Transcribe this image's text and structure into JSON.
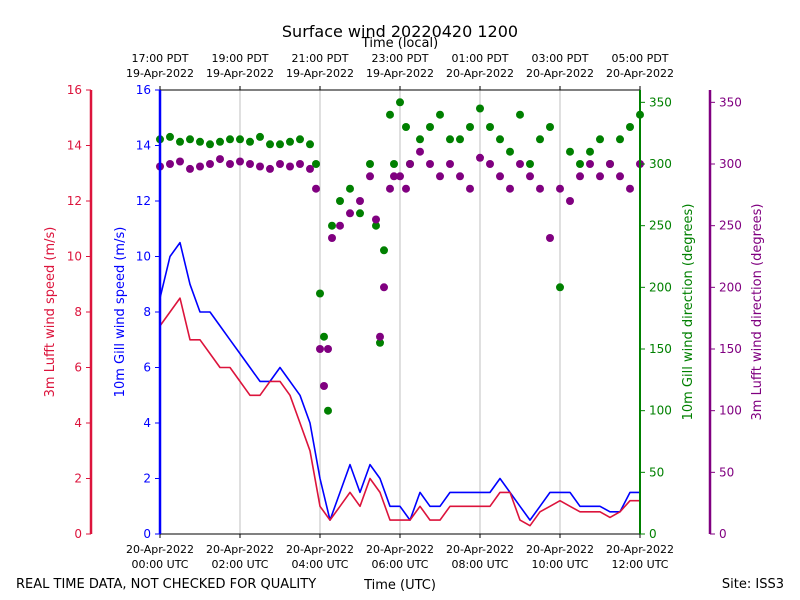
{
  "chart_data": {
    "type": "line",
    "title": "Surface wind 20220420 1200",
    "top_axis_label": "Time (local)",
    "bottom_axis_label": "Time (UTC)",
    "x_range_hours_utc": [
      0,
      12
    ],
    "grid": "vertical",
    "x_ticks_utc": [
      {
        "line1": "20-Apr-2022",
        "line2": "00:00 UTC",
        "hour": 0
      },
      {
        "line1": "20-Apr-2022",
        "line2": "02:00 UTC",
        "hour": 2
      },
      {
        "line1": "20-Apr-2022",
        "line2": "04:00 UTC",
        "hour": 4
      },
      {
        "line1": "20-Apr-2022",
        "line2": "06:00 UTC",
        "hour": 6
      },
      {
        "line1": "20-Apr-2022",
        "line2": "08:00 UTC",
        "hour": 8
      },
      {
        "line1": "20-Apr-2022",
        "line2": "10:00 UTC",
        "hour": 10
      },
      {
        "line1": "20-Apr-2022",
        "line2": "12:00 UTC",
        "hour": 12
      }
    ],
    "x_ticks_local": [
      {
        "line1": "17:00 PDT",
        "line2": "19-Apr-2022",
        "hour": 0
      },
      {
        "line1": "19:00 PDT",
        "line2": "19-Apr-2022",
        "hour": 2
      },
      {
        "line1": "21:00 PDT",
        "line2": "19-Apr-2022",
        "hour": 4
      },
      {
        "line1": "23:00 PDT",
        "line2": "19-Apr-2022",
        "hour": 6
      },
      {
        "line1": "01:00 PDT",
        "line2": "20-Apr-2022",
        "hour": 8
      },
      {
        "line1": "03:00 PDT",
        "line2": "20-Apr-2022",
        "hour": 10
      },
      {
        "line1": "05:00 PDT",
        "line2": "20-Apr-2022",
        "hour": 12
      }
    ],
    "axes": {
      "lufft_speed": {
        "label": "3m Lufft wind speed (m/s)",
        "ylim": [
          0,
          16
        ],
        "ticks": [
          "0",
          "2",
          "4",
          "6",
          "8",
          "10",
          "12",
          "14",
          "16"
        ],
        "color": "#dc143c"
      },
      "gill_speed": {
        "label": "10m Gill wind speed (m/s)",
        "ylim": [
          0,
          16
        ],
        "ticks": [
          "0",
          "2",
          "4",
          "6",
          "8",
          "10",
          "12",
          "14",
          "16"
        ],
        "color": "#0000ff"
      },
      "gill_dir": {
        "label": "10m Gill wind direction (degrees)",
        "ylim": [
          0,
          360
        ],
        "ticks": [
          "0",
          "50",
          "100",
          "150",
          "200",
          "250",
          "300",
          "350"
        ],
        "color": "#008000"
      },
      "lufft_dir": {
        "label": "3m Lufft wind direction (degrees)",
        "ylim": [
          0,
          360
        ],
        "ticks": [
          "0",
          "50",
          "100",
          "150",
          "200",
          "250",
          "300",
          "350"
        ],
        "color": "#800080"
      }
    },
    "series": [
      {
        "name": "10m Gill wind speed",
        "axis": "gill_speed",
        "color": "#0000ff",
        "style": "line",
        "x": [
          0,
          0.25,
          0.5,
          0.75,
          1.0,
          1.25,
          1.5,
          1.75,
          2.0,
          2.25,
          2.5,
          2.75,
          3.0,
          3.25,
          3.5,
          3.75,
          4.0,
          4.25,
          4.5,
          4.75,
          5.0,
          5.25,
          5.5,
          5.75,
          6.0,
          6.25,
          6.5,
          6.75,
          7.0,
          7.25,
          7.5,
          7.75,
          8.0,
          8.25,
          8.5,
          8.75,
          9.0,
          9.25,
          9.5,
          9.75,
          10.0,
          10.25,
          10.5,
          10.75,
          11.0,
          11.25,
          11.5,
          11.75,
          12.0
        ],
        "y": [
          8.5,
          10.0,
          10.5,
          9.0,
          8.0,
          8.0,
          7.5,
          7.0,
          6.5,
          6.0,
          5.5,
          5.5,
          6.0,
          5.5,
          5.0,
          4.0,
          2.0,
          0.5,
          1.5,
          2.5,
          1.5,
          2.5,
          2.0,
          1.0,
          1.0,
          0.5,
          1.5,
          1.0,
          1.0,
          1.5,
          1.5,
          1.5,
          1.5,
          1.5,
          2.0,
          1.5,
          1.0,
          0.5,
          1.0,
          1.5,
          1.5,
          1.5,
          1.0,
          1.0,
          1.0,
          0.8,
          0.8,
          1.5,
          1.5
        ]
      },
      {
        "name": "3m Lufft wind speed",
        "axis": "lufft_speed",
        "color": "#dc143c",
        "style": "line",
        "x": [
          0,
          0.25,
          0.5,
          0.75,
          1.0,
          1.25,
          1.5,
          1.75,
          2.0,
          2.25,
          2.5,
          2.75,
          3.0,
          3.25,
          3.5,
          3.75,
          4.0,
          4.25,
          4.5,
          4.75,
          5.0,
          5.25,
          5.5,
          5.75,
          6.0,
          6.25,
          6.5,
          6.75,
          7.0,
          7.25,
          7.5,
          7.75,
          8.0,
          8.25,
          8.5,
          8.75,
          9.0,
          9.25,
          9.5,
          9.75,
          10.0,
          10.25,
          10.5,
          10.75,
          11.0,
          11.25,
          11.5,
          11.75,
          12.0
        ],
        "y": [
          7.5,
          8.0,
          8.5,
          7.0,
          7.0,
          6.5,
          6.0,
          6.0,
          5.5,
          5.0,
          5.0,
          5.5,
          5.5,
          5.0,
          4.0,
          3.0,
          1.0,
          0.5,
          1.0,
          1.5,
          1.0,
          2.0,
          1.5,
          0.5,
          0.5,
          0.5,
          1.0,
          0.5,
          0.5,
          1.0,
          1.0,
          1.0,
          1.0,
          1.0,
          1.5,
          1.5,
          0.5,
          0.3,
          0.8,
          1.0,
          1.2,
          1.0,
          0.8,
          0.8,
          0.8,
          0.6,
          0.8,
          1.2,
          1.2
        ]
      },
      {
        "name": "10m Gill wind direction",
        "axis": "gill_dir",
        "color": "#008000",
        "style": "dots",
        "x": [
          0,
          0.25,
          0.5,
          0.75,
          1.0,
          1.25,
          1.5,
          1.75,
          2.0,
          2.25,
          2.5,
          2.75,
          3.0,
          3.25,
          3.5,
          3.75,
          3.9,
          4.0,
          4.1,
          4.2,
          4.3,
          4.5,
          4.75,
          5.0,
          5.25,
          5.4,
          5.5,
          5.6,
          5.75,
          5.85,
          6.0,
          6.15,
          6.25,
          6.5,
          6.75,
          7.0,
          7.25,
          7.5,
          7.75,
          8.0,
          8.25,
          8.5,
          8.75,
          9.0,
          9.25,
          9.5,
          9.75,
          10.0,
          10.25,
          10.5,
          10.75,
          11.0,
          11.25,
          11.5,
          11.75,
          12.0
        ],
        "y": [
          320,
          322,
          318,
          320,
          318,
          316,
          318,
          320,
          320,
          318,
          322,
          316,
          316,
          318,
          320,
          316,
          300,
          195,
          160,
          100,
          250,
          270,
          280,
          260,
          300,
          250,
          155,
          230,
          340,
          300,
          350,
          330,
          300,
          320,
          330,
          340,
          320,
          320,
          330,
          345,
          330,
          320,
          310,
          340,
          300,
          320,
          330,
          200,
          310,
          300,
          310,
          320,
          300,
          320,
          330,
          340
        ]
      },
      {
        "name": "3m Lufft wind direction",
        "axis": "lufft_dir",
        "color": "#800080",
        "style": "dots",
        "x": [
          0,
          0.25,
          0.5,
          0.75,
          1.0,
          1.25,
          1.5,
          1.75,
          2.0,
          2.25,
          2.5,
          2.75,
          3.0,
          3.25,
          3.5,
          3.75,
          3.9,
          4.0,
          4.1,
          4.2,
          4.3,
          4.5,
          4.75,
          5.0,
          5.25,
          5.4,
          5.5,
          5.6,
          5.75,
          5.85,
          6.0,
          6.15,
          6.25,
          6.5,
          6.75,
          7.0,
          7.25,
          7.5,
          7.75,
          8.0,
          8.25,
          8.5,
          8.75,
          9.0,
          9.25,
          9.5,
          9.75,
          10.0,
          10.25,
          10.5,
          10.75,
          11.0,
          11.25,
          11.5,
          11.75,
          12.0
        ],
        "y": [
          298,
          300,
          302,
          296,
          298,
          300,
          304,
          300,
          302,
          300,
          298,
          296,
          300,
          298,
          300,
          296,
          280,
          150,
          120,
          150,
          240,
          250,
          260,
          270,
          290,
          255,
          160,
          200,
          280,
          290,
          290,
          280,
          300,
          310,
          300,
          290,
          300,
          290,
          280,
          305,
          300,
          290,
          280,
          300,
          290,
          280,
          240,
          280,
          270,
          290,
          300,
          290,
          300,
          290,
          280,
          300
        ]
      }
    ],
    "footer_left": "REAL TIME DATA, NOT CHECKED FOR QUALITY",
    "footer_right": "Site: ISS3"
  }
}
